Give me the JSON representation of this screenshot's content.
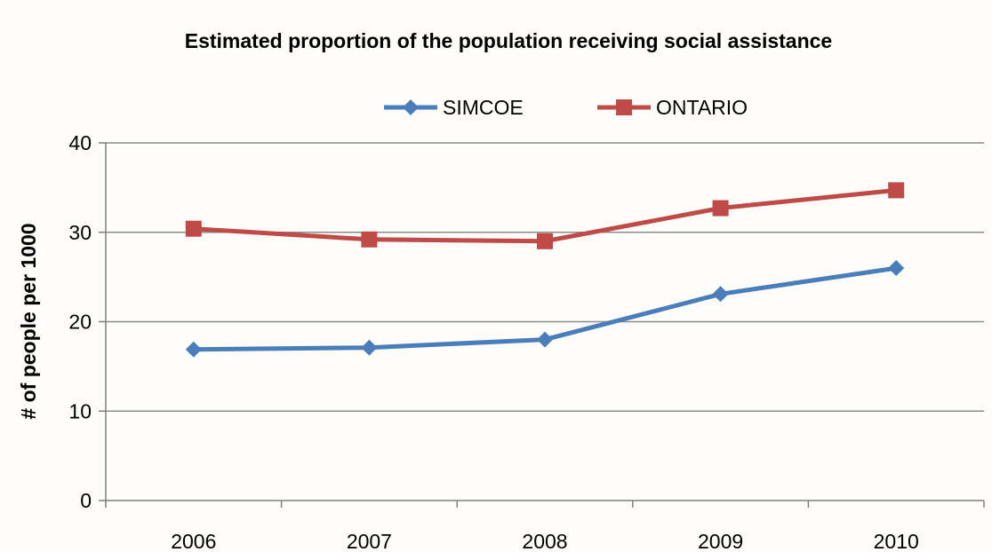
{
  "chart_data": {
    "type": "line",
    "title": "Estimated proportion of the population receiving social assistance",
    "xlabel": "",
    "ylabel": "# of people per 1000",
    "categories": [
      "2006",
      "2007",
      "2008",
      "2009",
      "2010"
    ],
    "ylim": [
      0,
      40
    ],
    "yticks": [
      0,
      10,
      20,
      30,
      40
    ],
    "grid": true,
    "legend_position": "top",
    "series": [
      {
        "name": "SIMCOE",
        "values": [
          16.9,
          17.1,
          18.0,
          23.1,
          26.0
        ],
        "color": "#4a7ebb",
        "marker": "diamond"
      },
      {
        "name": "ONTARIO",
        "values": [
          30.4,
          29.2,
          29.0,
          32.7,
          34.7
        ],
        "color": "#be4b48",
        "marker": "square"
      }
    ]
  }
}
